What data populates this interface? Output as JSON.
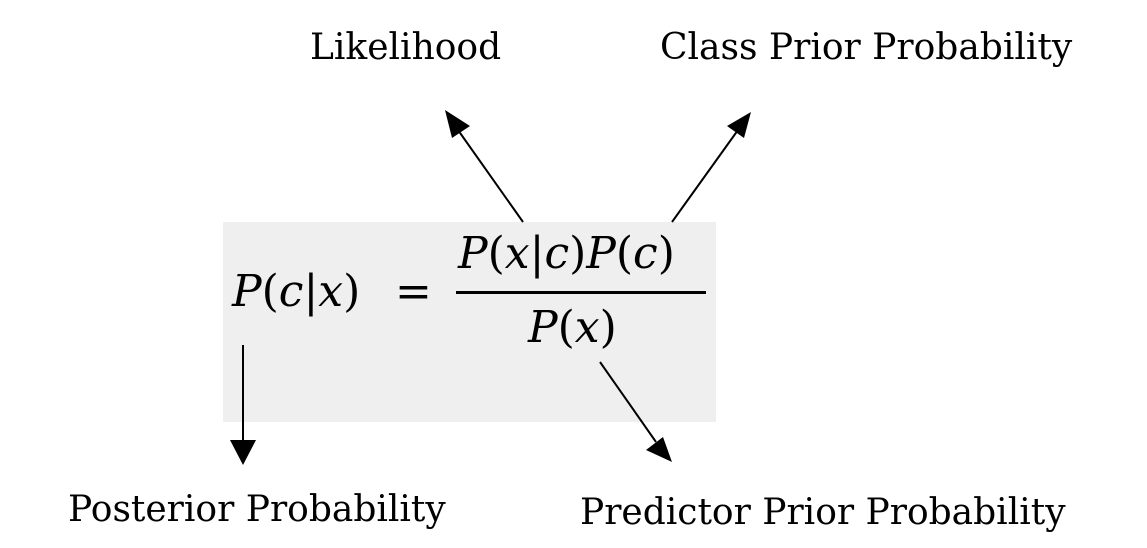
{
  "labels": {
    "likelihood": "Likelihood",
    "class_prior": "Class Prior Probability",
    "posterior": "Posterior Probability",
    "predictor_prior": "Predictor Prior Probability"
  },
  "formula": {
    "lhs_parts": [
      "P",
      "(",
      "c",
      "|",
      "x",
      ")"
    ],
    "equals": "=",
    "numerator_parts": [
      "P",
      "(",
      "x",
      "|",
      "c",
      ")",
      "P",
      "(",
      "c",
      ")"
    ],
    "denominator_parts": [
      "P",
      "(",
      "x",
      ")"
    ]
  },
  "colors": {
    "box_background": "#efefef",
    "ink": "#000000"
  }
}
